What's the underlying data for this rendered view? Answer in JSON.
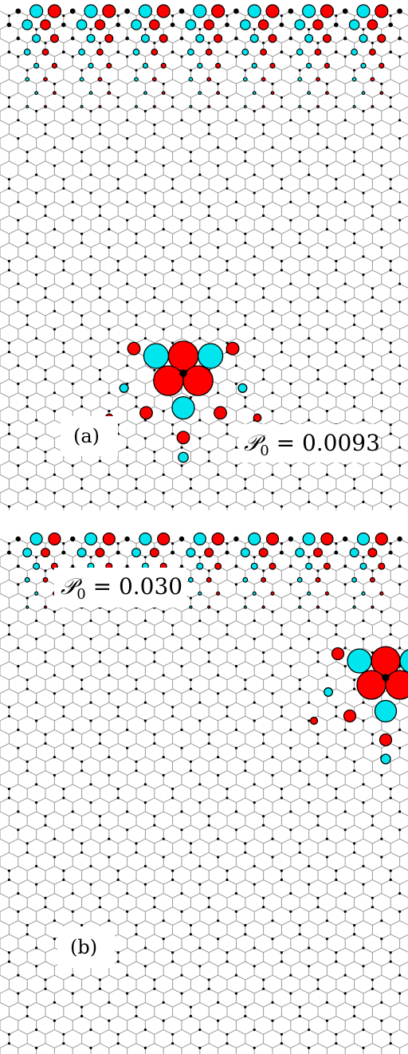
{
  "colors": {
    "lattice": "#999999",
    "site": "#000000",
    "positive": "#ff0000",
    "negative": "#00e5ee",
    "outline": "#000000"
  },
  "panels": [
    {
      "label": "(a)",
      "quantity_symbol": "𝒫",
      "quantity_subscript": "0",
      "equals": "=",
      "value": "0.0093"
    },
    {
      "label": "(b)",
      "quantity_symbol": "𝒫",
      "quantity_subscript": "0",
      "equals": "=",
      "value": "0.030"
    }
  ]
}
